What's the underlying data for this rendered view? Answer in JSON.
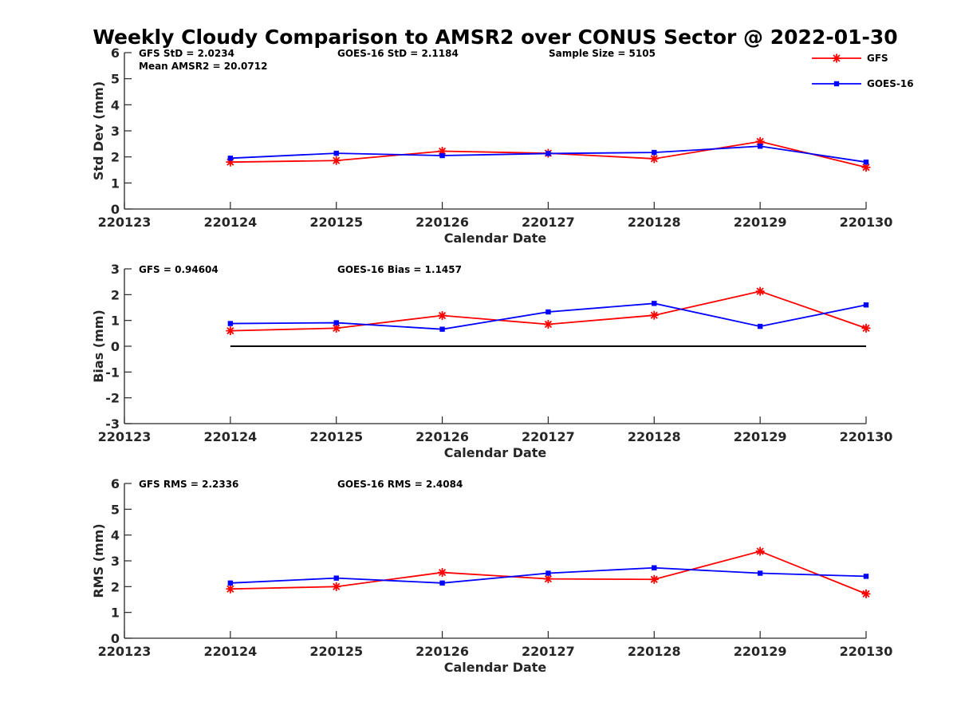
{
  "chart_data": {
    "title": "Weekly Cloudy Comparison to AMSR2 over CONUS Sector @ 2022-01-30",
    "legend": [
      {
        "name": "GFS",
        "color": "#ff0000",
        "marker": "asterisk"
      },
      {
        "name": "GOES-16",
        "color": "#0000ff",
        "marker": "square"
      }
    ],
    "legend_position": "top-right",
    "x_ticks": [
      "220123",
      "220124",
      "220125",
      "220126",
      "220127",
      "220128",
      "220129",
      "220130"
    ],
    "x_points": [
      "220124",
      "220125",
      "220126",
      "220127",
      "220128",
      "220129",
      "220130"
    ],
    "panels": [
      {
        "type": "line",
        "ylabel": "Std Dev (mm)",
        "xlabel": "Calendar Date",
        "ylim": [
          0,
          6
        ],
        "yticks": [
          "0",
          "1",
          "2",
          "3",
          "4",
          "5",
          "6"
        ],
        "annotations": [
          {
            "text": "GFS StD = 2.0234",
            "line": 1,
            "col": 0
          },
          {
            "text": "GOES-16 StD = 2.1184",
            "line": 1,
            "col": 1
          },
          {
            "text": "Sample Size = 5105",
            "line": 1,
            "col": 2
          },
          {
            "text": "Mean AMSR2 = 20.0712",
            "line": 2,
            "col": 0
          }
        ],
        "series": [
          {
            "name": "GFS",
            "values": [
              1.8,
              1.86,
              2.22,
              2.14,
              1.93,
              2.59,
              1.6
            ]
          },
          {
            "name": "GOES-16",
            "values": [
              1.95,
              2.14,
              2.05,
              2.13,
              2.17,
              2.41,
              1.8
            ]
          }
        ]
      },
      {
        "type": "line",
        "ylabel": "Bias (mm)",
        "xlabel": "Calendar Date",
        "ylim": [
          -3,
          3
        ],
        "yticks": [
          "-3",
          "-2",
          "-1",
          "0",
          "1",
          "2",
          "3"
        ],
        "zero_line": true,
        "annotations": [
          {
            "text": "GFS = 0.94604",
            "line": 1,
            "col": 0
          },
          {
            "text": "GOES-16 Bias  = 1.1457",
            "line": 1,
            "col": 1
          }
        ],
        "series": [
          {
            "name": "GFS",
            "values": [
              0.6,
              0.7,
              1.19,
              0.85,
              1.2,
              2.13,
              0.7
            ]
          },
          {
            "name": "GOES-16",
            "values": [
              0.88,
              0.91,
              0.66,
              1.33,
              1.66,
              0.77,
              1.6
            ]
          }
        ]
      },
      {
        "type": "line",
        "ylabel": "RMS (mm)",
        "xlabel": "Calendar Date",
        "ylim": [
          0,
          6
        ],
        "yticks": [
          "0",
          "1",
          "2",
          "3",
          "4",
          "5",
          "6"
        ],
        "annotations": [
          {
            "text": "GFS RMS = 2.2336",
            "line": 1,
            "col": 0
          },
          {
            "text": "GOES-16 RMS = 2.4084",
            "line": 1,
            "col": 1
          }
        ],
        "series": [
          {
            "name": "GFS",
            "values": [
              1.91,
              2.0,
              2.55,
              2.3,
              2.28,
              3.37,
              1.72
            ]
          },
          {
            "name": "GOES-16",
            "values": [
              2.14,
              2.33,
              2.14,
              2.52,
              2.73,
              2.52,
              2.4
            ]
          }
        ]
      }
    ]
  }
}
